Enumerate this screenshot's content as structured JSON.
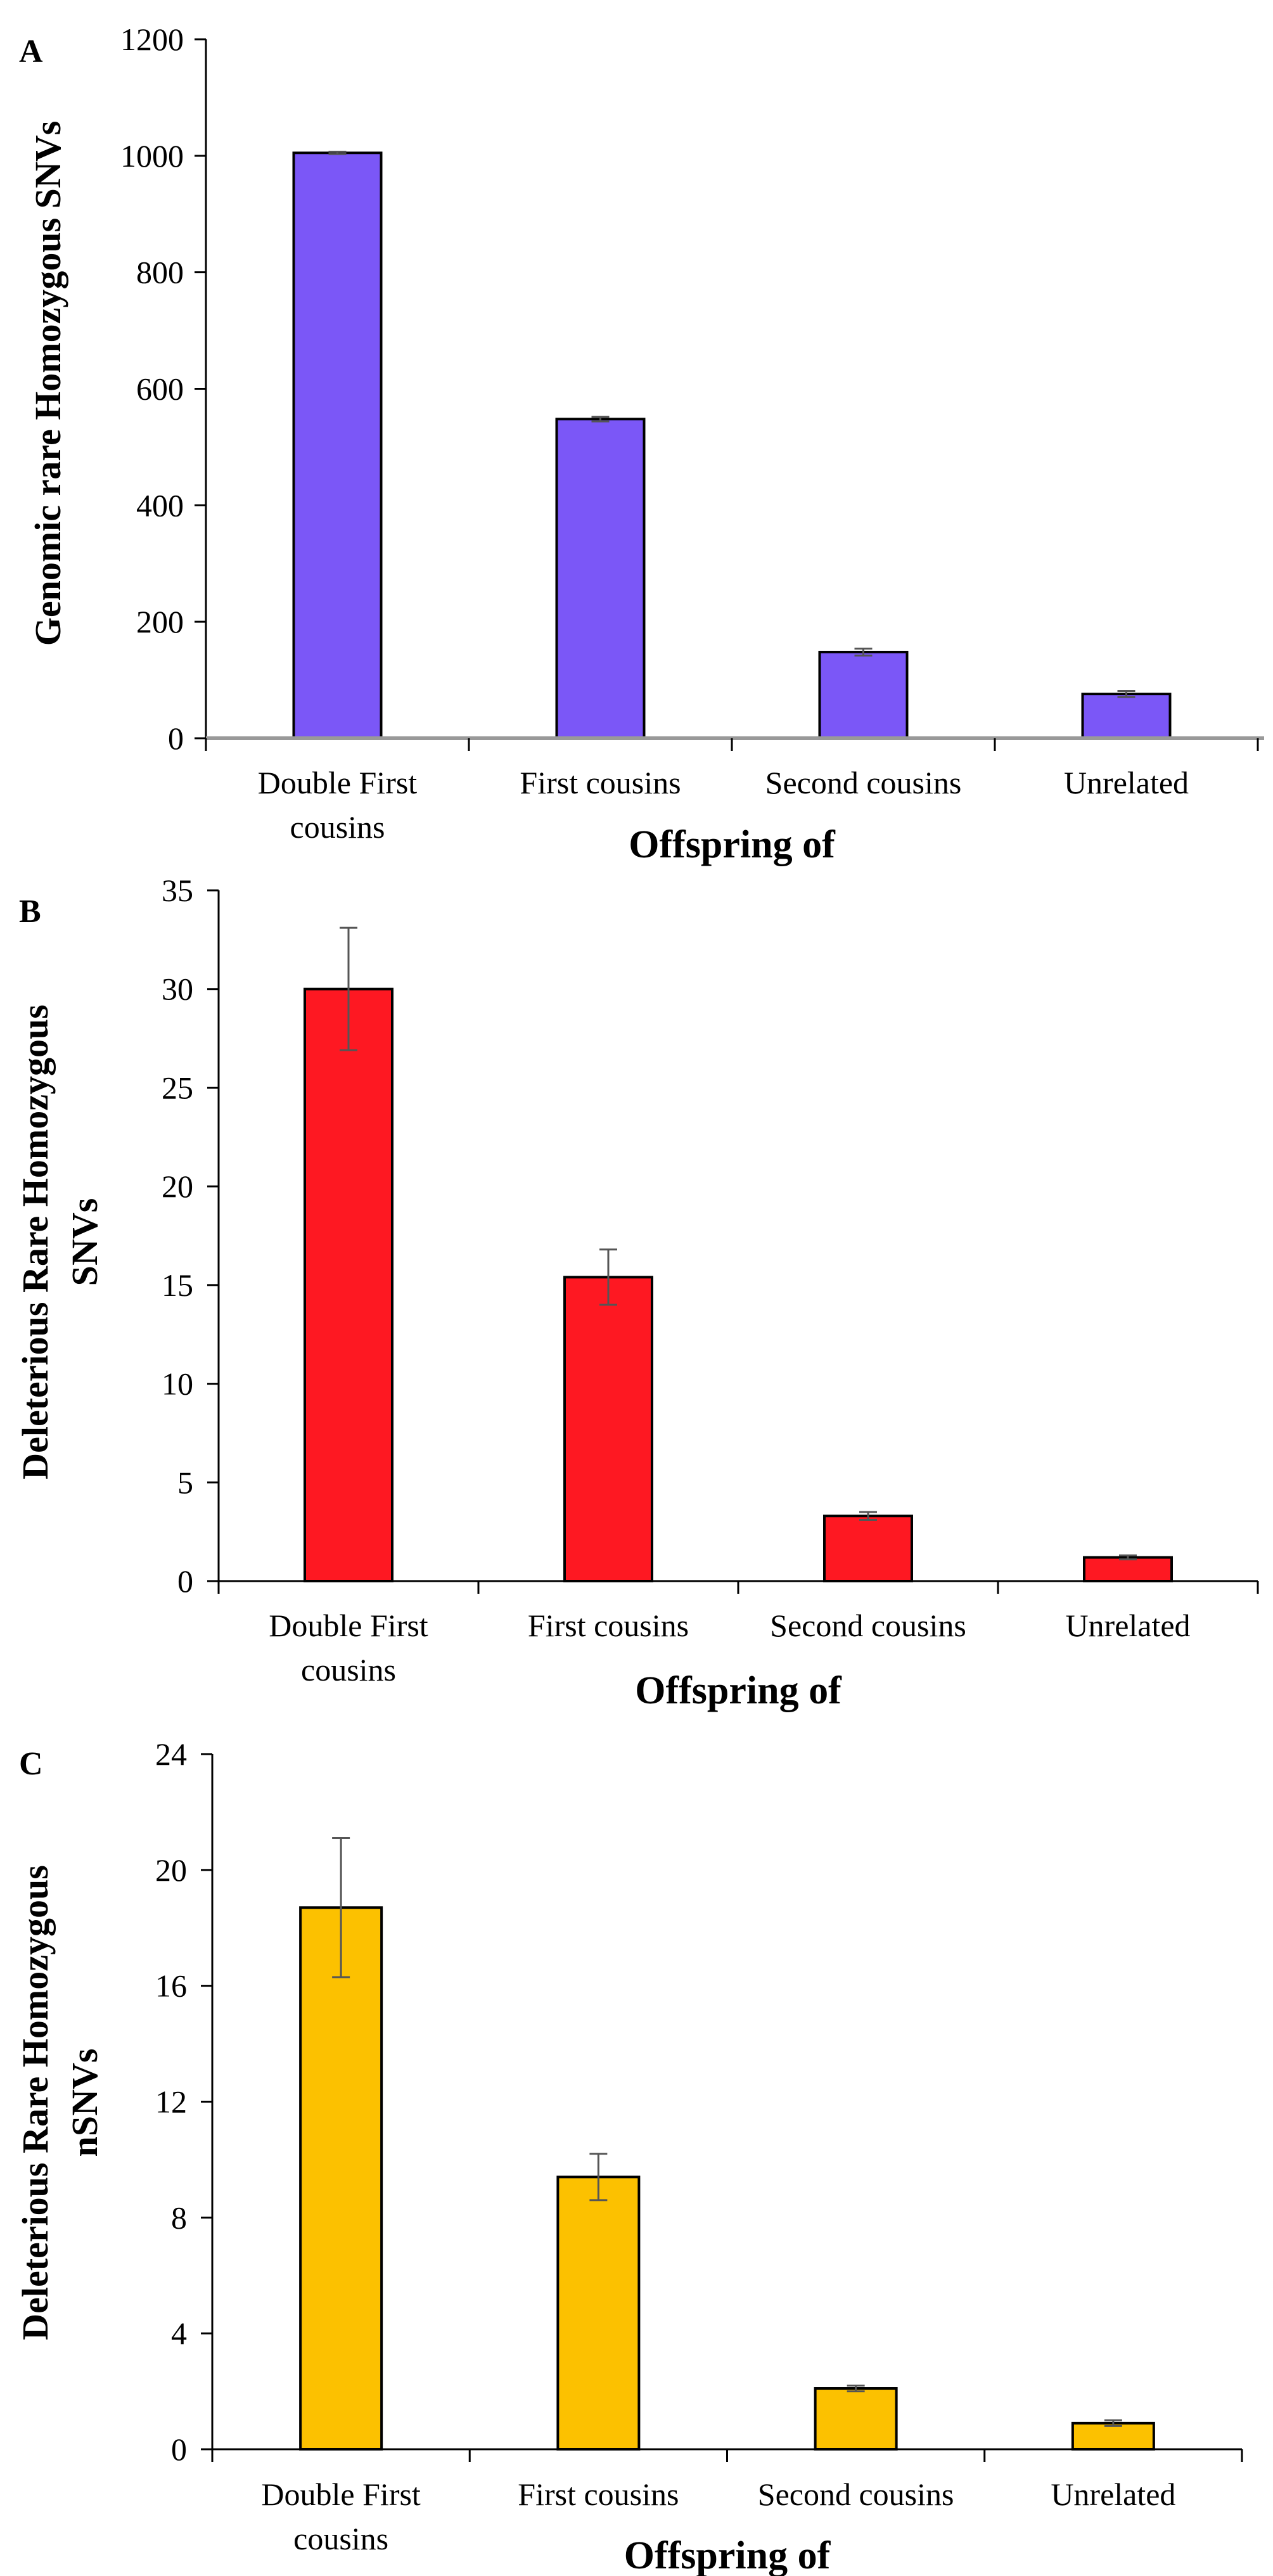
{
  "chart_data": [
    {
      "type": "bar",
      "panel": "A",
      "categories": [
        [
          "Double First",
          "cousins"
        ],
        [
          "First cousins"
        ],
        [
          "Second cousins"
        ],
        [
          "Unrelated"
        ]
      ],
      "values": [
        1005,
        548,
        148,
        76
      ],
      "errors": [
        2,
        4,
        6,
        5
      ],
      "color": "#7b57f7",
      "ylim": [
        0,
        1200
      ],
      "yticks": [
        0,
        200,
        400,
        600,
        800,
        1000,
        1200
      ],
      "ylabel": [
        "Genomic rare Homozygous SNVs"
      ],
      "xlabel": "Offspring of",
      "axis_style": "gray-line"
    },
    {
      "type": "bar",
      "panel": "B",
      "categories": [
        [
          "Double First",
          "cousins"
        ],
        [
          "First cousins"
        ],
        [
          "Second cousins"
        ],
        [
          "Unrelated"
        ]
      ],
      "values": [
        30,
        15.4,
        3.3,
        1.2
      ],
      "errors": [
        3.1,
        1.4,
        0.2,
        0.1
      ],
      "color": "#fe1822",
      "ylim": [
        0,
        35
      ],
      "yticks": [
        0,
        5,
        10,
        15,
        20,
        25,
        30,
        35
      ],
      "ylabel": [
        "Deleterious Rare Homozygous",
        "SNVs"
      ],
      "xlabel": "Offspring of",
      "axis_style": "black-ticks"
    },
    {
      "type": "bar",
      "panel": "C",
      "categories": [
        [
          "Double First",
          "cousins"
        ],
        [
          "First cousins"
        ],
        [
          "Second cousins"
        ],
        [
          "Unrelated"
        ]
      ],
      "values": [
        18.7,
        9.4,
        2.1,
        0.9
      ],
      "errors": [
        2.4,
        0.8,
        0.1,
        0.1
      ],
      "color": "#fcc100",
      "ylim": [
        0,
        24
      ],
      "yticks": [
        0,
        4,
        8,
        12,
        16,
        20,
        24
      ],
      "ylabel": [
        "Deleterious Rare Homozygous",
        "nSNVs"
      ],
      "xlabel": "Offspring of",
      "axis_style": "black-ticks"
    }
  ]
}
